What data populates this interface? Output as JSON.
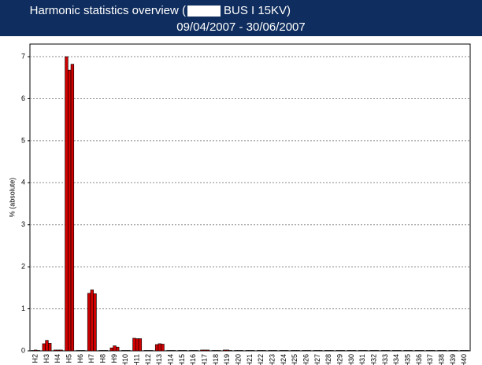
{
  "chart_data": {
    "type": "bar",
    "title": [
      "Harmonic statistics overview (",
      "BUS I 15KV)"
    ],
    "subtitle": "09/04/2007 - 30/06/2007",
    "y_label": "% (absolute)",
    "categories": [
      "H2",
      "H3",
      "H4",
      "H5",
      "H6",
      "H7",
      "H8",
      "H9",
      "H10",
      "H11",
      "H12",
      "H13",
      "H14",
      "H15",
      "H16",
      "H17",
      "H18",
      "H19",
      "H20",
      "H21",
      "H22",
      "H23",
      "H24",
      "H25",
      "H26",
      "H27",
      "H28",
      "H29",
      "H30",
      "H31",
      "H32",
      "H33",
      "H34",
      "H35",
      "H36",
      "H37",
      "H38",
      "H39",
      "H40"
    ],
    "series": [
      {
        "color": "#d00000",
        "values": [
          0.01,
          0.17,
          0.02,
          7.0,
          0.01,
          1.37,
          0.01,
          0.07,
          0.01,
          0.3,
          0.01,
          0.15,
          0.01,
          0.01,
          0.01,
          0.02,
          0.01,
          0.02,
          0.01,
          0.01,
          0.01,
          0.01,
          0.01,
          0.01,
          0.01,
          0.01,
          0.01,
          0.01,
          0.01,
          0.01,
          0.01,
          0.01,
          0.01,
          0.01,
          0.01,
          0.01,
          0.01,
          0.01,
          0.01
        ]
      },
      {
        "color": "#d00000",
        "values": [
          0.02,
          0.25,
          0.02,
          6.68,
          0.01,
          1.45,
          0.01,
          0.12,
          0.01,
          0.29,
          0.01,
          0.17,
          0.01,
          0.01,
          0.01,
          0.02,
          0.01,
          0.02,
          0.01,
          0.01,
          0.01,
          0.01,
          0.01,
          0.01,
          0.01,
          0.01,
          0.01,
          0.01,
          0.01,
          0.01,
          0.01,
          0.01,
          0.01,
          0.01,
          0.01,
          0.01,
          0.01,
          0.01,
          0.01
        ]
      },
      {
        "color": "#d00000",
        "values": [
          0.01,
          0.18,
          0.02,
          6.82,
          0.01,
          1.36,
          0.01,
          0.09,
          0.01,
          0.29,
          0.01,
          0.16,
          0.01,
          0.01,
          0.01,
          0.02,
          0.01,
          0.01,
          0.01,
          0.01,
          0.01,
          0.01,
          0.01,
          0.01,
          0.01,
          0.01,
          0.01,
          0.01,
          0.01,
          0.01,
          0.01,
          0.01,
          0.01,
          0.01,
          0.01,
          0.01,
          0.01,
          0.01,
          0.01
        ]
      }
    ],
    "ylim": [
      0,
      7.3
    ],
    "yticks": [
      0,
      1,
      2,
      3,
      4,
      5,
      6,
      7
    ],
    "grid": true
  }
}
